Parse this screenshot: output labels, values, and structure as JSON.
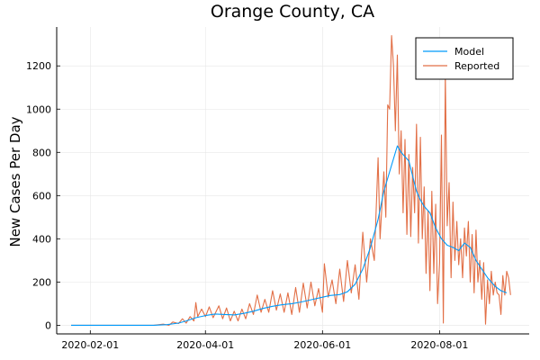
{
  "chart_data": {
    "type": "line",
    "title": "Orange County, CA",
    "xlabel": "",
    "ylabel": "New Cases Per Day",
    "x_range": [
      "2020-01-22",
      "2020-09-05"
    ],
    "ylim": [
      -40,
      1380
    ],
    "grid": true,
    "legend_position": "top-right",
    "x_ticks": [
      "2020-02-01",
      "2020-04-01",
      "2020-06-01",
      "2020-08-01"
    ],
    "y_ticks": [
      0,
      200,
      400,
      600,
      800,
      1000,
      1200
    ],
    "series": [
      {
        "name": "Model",
        "color": "#009AFA",
        "points": [
          [
            "2020-01-22",
            0
          ],
          [
            "2020-02-15",
            0
          ],
          [
            "2020-03-05",
            0
          ],
          [
            "2020-03-12",
            3
          ],
          [
            "2020-03-18",
            10
          ],
          [
            "2020-03-22",
            20
          ],
          [
            "2020-03-27",
            35
          ],
          [
            "2020-04-01",
            45
          ],
          [
            "2020-04-06",
            52
          ],
          [
            "2020-04-11",
            50
          ],
          [
            "2020-04-16",
            48
          ],
          [
            "2020-04-21",
            55
          ],
          [
            "2020-04-26",
            65
          ],
          [
            "2020-05-01",
            78
          ],
          [
            "2020-05-06",
            88
          ],
          [
            "2020-05-11",
            95
          ],
          [
            "2020-05-16",
            100
          ],
          [
            "2020-05-21",
            108
          ],
          [
            "2020-05-26",
            118
          ],
          [
            "2020-05-31",
            128
          ],
          [
            "2020-06-05",
            138
          ],
          [
            "2020-06-10",
            142
          ],
          [
            "2020-06-14",
            155
          ],
          [
            "2020-06-18",
            190
          ],
          [
            "2020-06-22",
            260
          ],
          [
            "2020-06-26",
            360
          ],
          [
            "2020-06-30",
            490
          ],
          [
            "2020-07-03",
            620
          ],
          [
            "2020-07-06",
            710
          ],
          [
            "2020-07-08",
            770
          ],
          [
            "2020-07-10",
            830
          ],
          [
            "2020-07-12",
            800
          ],
          [
            "2020-07-14",
            780
          ],
          [
            "2020-07-16",
            760
          ],
          [
            "2020-07-18",
            690
          ],
          [
            "2020-07-20",
            620
          ],
          [
            "2020-07-22",
            580
          ],
          [
            "2020-07-24",
            550
          ],
          [
            "2020-07-27",
            520
          ],
          [
            "2020-07-30",
            450
          ],
          [
            "2020-08-02",
            400
          ],
          [
            "2020-08-05",
            370
          ],
          [
            "2020-08-08",
            360
          ],
          [
            "2020-08-11",
            345
          ],
          [
            "2020-08-14",
            380
          ],
          [
            "2020-08-17",
            360
          ],
          [
            "2020-08-20",
            300
          ],
          [
            "2020-08-23",
            260
          ],
          [
            "2020-08-26",
            220
          ],
          [
            "2020-08-30",
            180
          ],
          [
            "2020-09-02",
            160
          ],
          [
            "2020-09-05",
            150
          ]
        ]
      },
      {
        "name": "Reported",
        "color": "#E26F46",
        "points": [
          [
            "2020-01-22",
            0
          ],
          [
            "2020-03-05",
            0
          ],
          [
            "2020-03-10",
            5
          ],
          [
            "2020-03-13",
            0
          ],
          [
            "2020-03-15",
            15
          ],
          [
            "2020-03-18",
            8
          ],
          [
            "2020-03-20",
            30
          ],
          [
            "2020-03-22",
            10
          ],
          [
            "2020-03-24",
            40
          ],
          [
            "2020-03-26",
            20
          ],
          [
            "2020-03-27",
            105
          ],
          [
            "2020-03-28",
            40
          ],
          [
            "2020-03-30",
            75
          ],
          [
            "2020-04-01",
            40
          ],
          [
            "2020-04-03",
            85
          ],
          [
            "2020-04-05",
            35
          ],
          [
            "2020-04-08",
            90
          ],
          [
            "2020-04-10",
            30
          ],
          [
            "2020-04-12",
            80
          ],
          [
            "2020-04-14",
            20
          ],
          [
            "2020-04-16",
            65
          ],
          [
            "2020-04-18",
            20
          ],
          [
            "2020-04-20",
            75
          ],
          [
            "2020-04-22",
            30
          ],
          [
            "2020-04-24",
            100
          ],
          [
            "2020-04-26",
            50
          ],
          [
            "2020-04-28",
            140
          ],
          [
            "2020-04-30",
            60
          ],
          [
            "2020-05-02",
            120
          ],
          [
            "2020-05-04",
            60
          ],
          [
            "2020-05-06",
            160
          ],
          [
            "2020-05-08",
            70
          ],
          [
            "2020-05-10",
            145
          ],
          [
            "2020-05-12",
            60
          ],
          [
            "2020-05-14",
            150
          ],
          [
            "2020-05-16",
            50
          ],
          [
            "2020-05-18",
            175
          ],
          [
            "2020-05-20",
            60
          ],
          [
            "2020-05-22",
            195
          ],
          [
            "2020-05-24",
            80
          ],
          [
            "2020-05-26",
            200
          ],
          [
            "2020-05-28",
            90
          ],
          [
            "2020-05-30",
            170
          ],
          [
            "2020-06-01",
            60
          ],
          [
            "2020-06-02",
            285
          ],
          [
            "2020-06-04",
            130
          ],
          [
            "2020-06-06",
            210
          ],
          [
            "2020-06-08",
            100
          ],
          [
            "2020-06-10",
            260
          ],
          [
            "2020-06-12",
            110
          ],
          [
            "2020-06-14",
            300
          ],
          [
            "2020-06-16",
            150
          ],
          [
            "2020-06-18",
            280
          ],
          [
            "2020-06-20",
            120
          ],
          [
            "2020-06-22",
            430
          ],
          [
            "2020-06-24",
            200
          ],
          [
            "2020-06-26",
            400
          ],
          [
            "2020-06-28",
            300
          ],
          [
            "2020-06-30",
            775
          ],
          [
            "2020-07-01",
            400
          ],
          [
            "2020-07-03",
            710
          ],
          [
            "2020-07-04",
            500
          ],
          [
            "2020-07-05",
            1020
          ],
          [
            "2020-07-06",
            1000
          ],
          [
            "2020-07-07",
            1340
          ],
          [
            "2020-07-08",
            1200
          ],
          [
            "2020-07-09",
            900
          ],
          [
            "2020-07-10",
            1250
          ],
          [
            "2020-07-11",
            700
          ],
          [
            "2020-07-12",
            900
          ],
          [
            "2020-07-13",
            520
          ],
          [
            "2020-07-14",
            860
          ],
          [
            "2020-07-15",
            420
          ],
          [
            "2020-07-16",
            790
          ],
          [
            "2020-07-17",
            410
          ],
          [
            "2020-07-18",
            730
          ],
          [
            "2020-07-19",
            520
          ],
          [
            "2020-07-20",
            930
          ],
          [
            "2020-07-21",
            380
          ],
          [
            "2020-07-22",
            870
          ],
          [
            "2020-07-23",
            400
          ],
          [
            "2020-07-24",
            640
          ],
          [
            "2020-07-25",
            240
          ],
          [
            "2020-07-26",
            530
          ],
          [
            "2020-07-27",
            160
          ],
          [
            "2020-07-28",
            620
          ],
          [
            "2020-07-29",
            240
          ],
          [
            "2020-07-30",
            560
          ],
          [
            "2020-07-31",
            100
          ],
          [
            "2020-08-01",
            290
          ],
          [
            "2020-08-02",
            880
          ],
          [
            "2020-08-03",
            10
          ],
          [
            "2020-08-04",
            1160
          ],
          [
            "2020-08-05",
            460
          ],
          [
            "2020-08-06",
            660
          ],
          [
            "2020-08-07",
            220
          ],
          [
            "2020-08-08",
            570
          ],
          [
            "2020-08-09",
            300
          ],
          [
            "2020-08-10",
            480
          ],
          [
            "2020-08-11",
            280
          ],
          [
            "2020-08-12",
            400
          ],
          [
            "2020-08-13",
            220
          ],
          [
            "2020-08-14",
            450
          ],
          [
            "2020-08-15",
            320
          ],
          [
            "2020-08-16",
            480
          ],
          [
            "2020-08-17",
            200
          ],
          [
            "2020-08-18",
            420
          ],
          [
            "2020-08-19",
            150
          ],
          [
            "2020-08-20",
            440
          ],
          [
            "2020-08-21",
            200
          ],
          [
            "2020-08-22",
            300
          ],
          [
            "2020-08-23",
            120
          ],
          [
            "2020-08-24",
            290
          ],
          [
            "2020-08-25",
            5
          ],
          [
            "2020-08-26",
            210
          ],
          [
            "2020-08-27",
            100
          ],
          [
            "2020-08-28",
            250
          ],
          [
            "2020-08-29",
            140
          ],
          [
            "2020-08-30",
            200
          ],
          [
            "2020-08-31",
            150
          ],
          [
            "2020-09-01",
            140
          ],
          [
            "2020-09-02",
            50
          ],
          [
            "2020-09-03",
            230
          ],
          [
            "2020-09-04",
            140
          ],
          [
            "2020-09-05",
            250
          ],
          [
            "2020-09-06",
            220
          ],
          [
            "2020-09-07",
            140
          ]
        ]
      }
    ]
  }
}
